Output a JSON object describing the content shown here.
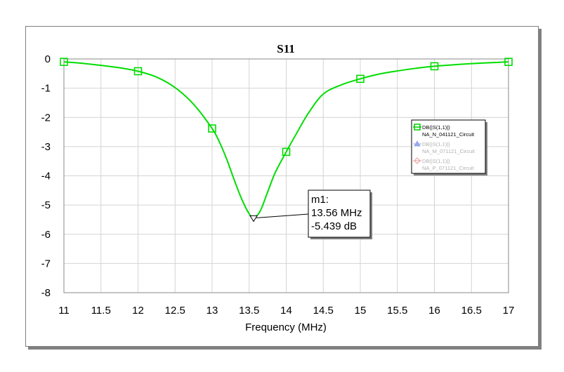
{
  "chart_data": {
    "type": "line",
    "title": "S11",
    "xlabel": "Frequency (MHz)",
    "ylabel": "",
    "xlim": [
      11,
      17
    ],
    "ylim": [
      -8,
      0
    ],
    "x_ticks": [
      "11",
      "11.5",
      "12",
      "12.5",
      "13",
      "13.5",
      "14",
      "14.5",
      "15",
      "15.5",
      "16",
      "16.5",
      "17"
    ],
    "y_ticks": [
      "0",
      "-1",
      "-2",
      "-3",
      "-4",
      "-5",
      "-6",
      "-7",
      "-8"
    ],
    "grid": true,
    "legend_position": "right",
    "series": [
      {
        "name": "DB(|S(1,1)|)",
        "name_line2": "NA_N_041121_Circuit",
        "color": "#00dd00",
        "marker": "square",
        "visible": true,
        "x": [
          11.0,
          11.25,
          11.5,
          11.75,
          12.0,
          12.25,
          12.5,
          12.75,
          13.0,
          13.1,
          13.2,
          13.3,
          13.4,
          13.5,
          13.56,
          13.65,
          13.75,
          13.85,
          14.0,
          14.15,
          14.3,
          14.5,
          14.75,
          15.0,
          15.25,
          15.5,
          15.75,
          16.0,
          16.5,
          17.0
        ],
        "values": [
          -0.1,
          -0.15,
          -0.22,
          -0.3,
          -0.42,
          -0.62,
          -0.98,
          -1.55,
          -2.38,
          -2.85,
          -3.45,
          -4.15,
          -4.8,
          -5.3,
          -5.44,
          -5.2,
          -4.55,
          -3.9,
          -3.18,
          -2.5,
          -1.85,
          -1.2,
          -0.88,
          -0.68,
          -0.52,
          -0.41,
          -0.32,
          -0.25,
          -0.16,
          -0.1
        ],
        "marker_x": [
          11,
          12,
          13,
          14,
          15,
          16,
          17
        ],
        "marker_y": [
          -0.1,
          -0.42,
          -2.38,
          -3.18,
          -0.68,
          -0.25,
          -0.1
        ]
      },
      {
        "name": "DB(|S(1,1)|)",
        "name_line2": "NA_M_071121_Circuit",
        "color": "#9aa7e8",
        "marker": "triangle",
        "visible": false
      },
      {
        "name": "DB(|S(1,1)|)",
        "name_line2": "NA_P_071121_Circuit",
        "color": "#e8a0a0",
        "marker": "diamond",
        "visible": false
      }
    ],
    "marker_label": {
      "name": "m1:",
      "x_text": "13.56 MHz",
      "y_text": "-5.439 dB",
      "x": 13.56,
      "y": -5.439
    }
  }
}
